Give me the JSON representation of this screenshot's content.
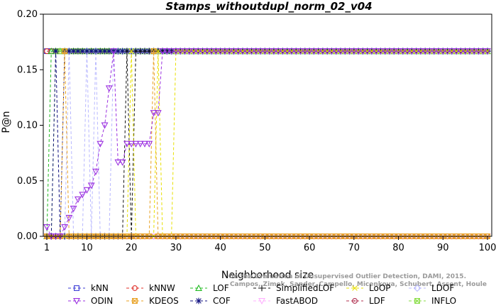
{
  "chart_data": {
    "type": "line",
    "title": "Stamps_withoutdupl_norm_02_v04",
    "xlabel": "Neighborhood size",
    "ylabel": "P@n",
    "xlim": [
      1,
      100
    ],
    "ylim": [
      0,
      0.2
    ],
    "xticks": [
      1,
      10,
      20,
      30,
      40,
      50,
      60,
      70,
      80,
      90,
      100
    ],
    "yticks": [
      "0.00",
      "0.05",
      "0.10",
      "0.15",
      "0.20"
    ],
    "grid": false,
    "legend_position": "bottom",
    "credit": [
      "Campos, Zimek, Sander, Campello, Micenkova, Schubert, Assent, Houle",
      "On the Evaluation of Unsupervised Outlier Detection, DAMI, 2015."
    ],
    "series": [
      {
        "name": "kNN",
        "color": "#3b3bd6",
        "marker": "square",
        "default": 0.1667,
        "steps": [
          [
            1,
            0.1667
          ]
        ]
      },
      {
        "name": "kNNW",
        "color": "#e0302a",
        "marker": "circle",
        "default": 0.1667,
        "steps": [
          [
            1,
            0.1667
          ]
        ]
      },
      {
        "name": "LOF",
        "color": "#22bb22",
        "marker": "triangle-up",
        "default": 0.1667,
        "steps": [
          [
            1,
            0
          ],
          [
            2,
            0.1667
          ]
        ]
      },
      {
        "name": "SimplifiedLOF",
        "color": "#111111",
        "marker": "plus",
        "default": 0.1667,
        "steps": [
          [
            1,
            0
          ],
          [
            18,
            0
          ],
          [
            19,
            0.1667
          ],
          [
            20,
            0
          ],
          [
            21,
            0.1667
          ]
        ]
      },
      {
        "name": "LoOP",
        "color": "#e8e000",
        "marker": "x",
        "default": 0.1667,
        "steps": [
          [
            1,
            0
          ],
          [
            20,
            0.1667
          ],
          [
            21,
            0
          ],
          [
            26,
            0.1667
          ],
          [
            27,
            0
          ],
          [
            30,
            0.1667
          ]
        ]
      },
      {
        "name": "LDOF",
        "color": "#b8b8ff",
        "marker": "diamond",
        "default": 0.1667,
        "steps": [
          [
            1,
            0
          ],
          [
            6,
            0.1667
          ],
          [
            7,
            0
          ],
          [
            10,
            0.1667
          ],
          [
            11,
            0
          ],
          [
            12,
            0.1667
          ],
          [
            13,
            0
          ],
          [
            16,
            0.1667
          ]
        ]
      },
      {
        "name": "ODIN",
        "color": "#9b30e0",
        "marker": "triangle-down",
        "default": 0.1667,
        "steps": [
          [
            1,
            0.0083
          ],
          [
            2,
            0
          ],
          [
            5,
            0.0083
          ],
          [
            6,
            0.0167
          ],
          [
            7,
            0.025
          ],
          [
            8,
            0.0333
          ],
          [
            9,
            0.0375
          ],
          [
            10,
            0.0417
          ],
          [
            11,
            0.0458
          ],
          [
            12,
            0.0583
          ],
          [
            13,
            0.0833
          ],
          [
            14,
            0.1
          ],
          [
            15,
            0.1333
          ],
          [
            16,
            0.1667
          ],
          [
            17,
            0.0667
          ],
          [
            18,
            0.0667
          ],
          [
            19,
            0.0833
          ],
          [
            20,
            0.0833
          ],
          [
            21,
            0.0833
          ],
          [
            22,
            0.0833
          ],
          [
            23,
            0.0833
          ],
          [
            24,
            0.0833
          ],
          [
            25,
            0.1111
          ],
          [
            26,
            0.1111
          ],
          [
            27,
            0.1667
          ]
        ]
      },
      {
        "name": "KDEOS",
        "color": "#e8a020",
        "marker": "square-x",
        "default": 0,
        "steps": [
          [
            1,
            0
          ],
          [
            5,
            0.1667
          ],
          [
            6,
            0
          ],
          [
            25,
            0.1667
          ],
          [
            26,
            0
          ],
          [
            29,
            0
          ]
        ]
      },
      {
        "name": "COF",
        "color": "#101080",
        "marker": "asterisk",
        "default": 0.1667,
        "steps": [
          [
            1,
            0
          ],
          [
            3,
            0.1667
          ],
          [
            4,
            0
          ],
          [
            5,
            0.1667
          ],
          [
            6,
            0.1667
          ]
        ]
      },
      {
        "name": "FastABOD",
        "color": "#ffb0ff",
        "marker": "triangle-down-thin",
        "default": 0,
        "steps": [
          [
            1,
            0
          ]
        ]
      },
      {
        "name": "LDF",
        "color": "#b03050",
        "marker": "circle-dot",
        "default": 0,
        "steps": [
          [
            1,
            0
          ]
        ]
      },
      {
        "name": "INFLO",
        "color": "#88dd44",
        "marker": "square-x",
        "default": 0.1667,
        "steps": [
          [
            1,
            0
          ],
          [
            2,
            0
          ],
          [
            3,
            0.1667
          ]
        ]
      }
    ]
  }
}
